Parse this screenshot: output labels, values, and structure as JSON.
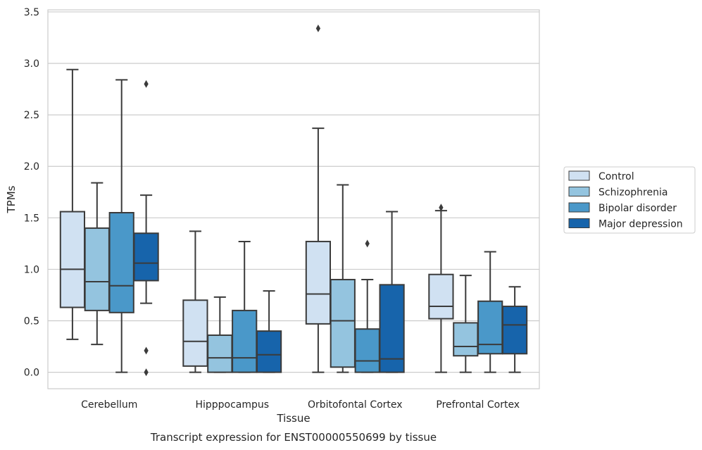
{
  "chart_data": {
    "type": "box",
    "title": "Transcript expression for ENST00000550699 by tissue",
    "xlabel": "Tissue",
    "ylabel": "TPMs",
    "ylim": [
      -0.16,
      3.52
    ],
    "yticks": [
      0.0,
      0.5,
      1.0,
      1.5,
      2.0,
      2.5,
      3.0,
      3.5
    ],
    "ytick_labels": [
      "0.0",
      "0.5",
      "1.0",
      "1.5",
      "2.0",
      "2.5",
      "3.0",
      "3.5"
    ],
    "grid": "horizontal",
    "legend_position": "right",
    "categories": [
      "Cerebellum",
      "Hipppocampus",
      "Orbitofontal Cortex",
      "Prefrontal Cortex"
    ],
    "series": [
      {
        "name": "Control",
        "color": "#d0e1f2",
        "boxes": [
          {
            "whislo": 0.32,
            "q1": 0.63,
            "med": 1.0,
            "q3": 1.56,
            "whishi": 2.94,
            "fliers": []
          },
          {
            "whislo": 0.0,
            "q1": 0.06,
            "med": 0.3,
            "q3": 0.7,
            "whishi": 1.37,
            "fliers": []
          },
          {
            "whislo": 0.0,
            "q1": 0.47,
            "med": 0.76,
            "q3": 1.27,
            "whishi": 2.37,
            "fliers": [
              3.34
            ]
          },
          {
            "whislo": 0.0,
            "q1": 0.52,
            "med": 0.64,
            "q3": 0.95,
            "whishi": 1.57,
            "fliers": [
              1.6
            ]
          }
        ]
      },
      {
        "name": "Schizophrenia",
        "color": "#94c4df",
        "boxes": [
          {
            "whislo": 0.27,
            "q1": 0.6,
            "med": 0.88,
            "q3": 1.4,
            "whishi": 1.84,
            "fliers": []
          },
          {
            "whislo": 0.0,
            "q1": 0.0,
            "med": 0.14,
            "q3": 0.36,
            "whishi": 0.73,
            "fliers": []
          },
          {
            "whislo": 0.0,
            "q1": 0.05,
            "med": 0.5,
            "q3": 0.9,
            "whishi": 1.82,
            "fliers": []
          },
          {
            "whislo": 0.0,
            "q1": 0.16,
            "med": 0.25,
            "q3": 0.48,
            "whishi": 0.94,
            "fliers": []
          }
        ]
      },
      {
        "name": "Bipolar disorder",
        "color": "#4a98c9",
        "boxes": [
          {
            "whislo": 0.0,
            "q1": 0.58,
            "med": 0.84,
            "q3": 1.55,
            "whishi": 2.84,
            "fliers": []
          },
          {
            "whislo": 0.0,
            "q1": 0.0,
            "med": 0.14,
            "q3": 0.6,
            "whishi": 1.27,
            "fliers": []
          },
          {
            "whislo": 0.0,
            "q1": 0.0,
            "med": 0.11,
            "q3": 0.42,
            "whishi": 0.9,
            "fliers": [
              1.25
            ]
          },
          {
            "whislo": 0.0,
            "q1": 0.18,
            "med": 0.27,
            "q3": 0.69,
            "whishi": 1.17,
            "fliers": []
          }
        ]
      },
      {
        "name": "Major depression",
        "color": "#1764ab",
        "boxes": [
          {
            "whislo": 0.67,
            "q1": 0.89,
            "med": 1.06,
            "q3": 1.35,
            "whishi": 1.72,
            "fliers": [
              2.8,
              0.21,
              0.0
            ]
          },
          {
            "whislo": 0.0,
            "q1": 0.0,
            "med": 0.17,
            "q3": 0.4,
            "whishi": 0.79,
            "fliers": []
          },
          {
            "whislo": 0.0,
            "q1": 0.0,
            "med": 0.13,
            "q3": 0.85,
            "whishi": 1.56,
            "fliers": []
          },
          {
            "whislo": 0.0,
            "q1": 0.18,
            "med": 0.46,
            "q3": 0.64,
            "whishi": 0.83,
            "fliers": []
          }
        ]
      }
    ]
  }
}
